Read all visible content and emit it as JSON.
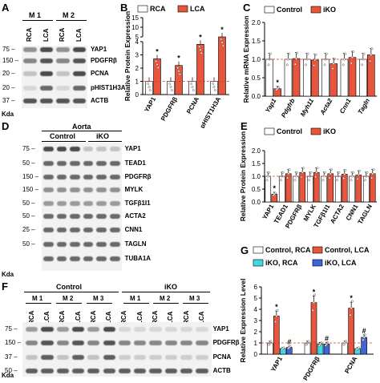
{
  "panels": {
    "A": {
      "label": "A",
      "mice": [
        "M 1",
        "M 2"
      ],
      "lanes": [
        "RCA",
        "LCA",
        "RCA",
        "LCA"
      ],
      "markers": [
        "75",
        "150",
        "20",
        "20",
        "37"
      ],
      "unit": "Kda",
      "proteins": [
        "YAP1",
        "PDGFRβ",
        "PCNA",
        "pHIST1H3A",
        "ACTB"
      ]
    },
    "B": {
      "label": "B",
      "legend": [
        "RCA",
        "LCA"
      ]
    },
    "C": {
      "label": "C",
      "legend": [
        "Control",
        "iKO"
      ]
    },
    "D": {
      "label": "D",
      "tissue": "Aorta",
      "groups": [
        "Control",
        "iKO"
      ],
      "markers": [
        "75",
        "50",
        "150",
        "150",
        "50",
        "50",
        "25",
        "50"
      ],
      "unit": "Kda",
      "proteins": [
        "YAP1",
        "TEAD1",
        "PDGFRβ",
        "MYLK",
        "TGFβ1I1",
        "ACTA2",
        "CNN1",
        "TAGLN",
        "TUBA1A"
      ]
    },
    "E": {
      "label": "E",
      "legend": [
        "Control",
        "iKO"
      ]
    },
    "F": {
      "label": "F",
      "groups": [
        "Control",
        "iKO"
      ],
      "mice": [
        "M 1",
        "M 2",
        "M 3",
        "M 1",
        "M 2",
        "M 3"
      ],
      "lanes": [
        "RCA",
        "LCA",
        "RCA",
        "LCA",
        "RCA",
        "LCA",
        "RCA",
        "LCA",
        "RCA",
        "LCA",
        "RCA",
        "LCA"
      ],
      "markers": [
        "75",
        "150",
        "37",
        "50"
      ],
      "unit": "Kda",
      "proteins": [
        "YAP1",
        "PDGFRβ",
        "PCNA",
        "ACTB"
      ]
    },
    "G": {
      "label": "G",
      "legend": [
        "Control, RCA",
        "Control, LCA",
        "iKO, RCA",
        "iKO, LCA"
      ]
    }
  },
  "colors": {
    "red": "#e8553d",
    "white": "#ffffff",
    "cyan": "#3fd9e6",
    "blue": "#3f63d8",
    "dashed": "#d43a2a"
  },
  "chart_data": [
    {
      "type": "bar",
      "panel": "B",
      "ylabel": "Relative Protein Expression",
      "categories": [
        "YAP1",
        "PDGFRβ",
        "PCNA",
        "pHIST1H3A"
      ],
      "series": [
        {
          "name": "RCA",
          "values": [
            1,
            1,
            1,
            1
          ]
        },
        {
          "name": "LCA",
          "values": [
            2.7,
            2.2,
            3.8,
            4.7
          ]
        }
      ],
      "significance": [
        "*",
        "*",
        "*",
        "*"
      ],
      "y_axis_broken": true,
      "yticks_lower": [
        "0",
        "1",
        "2",
        "3",
        "4"
      ],
      "yticks_upper": [
        "5",
        "10",
        "15"
      ],
      "ylim": [
        0,
        15
      ]
    },
    {
      "type": "bar",
      "panel": "C",
      "ylabel": "Relative mRNA Expression",
      "categories": [
        "Yap1",
        "Pdgfrb",
        "Myh11",
        "Acta2",
        "Cnn1",
        "Tagln"
      ],
      "series": [
        {
          "name": "Control",
          "values": [
            1.0,
            1.0,
            1.0,
            1.0,
            1.0,
            1.0
          ]
        },
        {
          "name": "iKO",
          "values": [
            0.2,
            1.02,
            0.98,
            0.88,
            1.05,
            1.12
          ]
        }
      ],
      "significance": [
        "*",
        "",
        "",
        "",
        "",
        ""
      ],
      "yticks": [
        "0.0",
        "0.5",
        "1.0",
        "1.5",
        "2.0"
      ],
      "ylim": [
        0,
        2.0
      ]
    },
    {
      "type": "bar",
      "panel": "E",
      "ylabel": "Relative Protein Expression",
      "categories": [
        "YAP1",
        "TEAD1",
        "PDGFRβ",
        "MYLK",
        "TGFβ1I1",
        "ACTA2",
        "CNN1",
        "TAGLN"
      ],
      "series": [
        {
          "name": "Control",
          "values": [
            1.0,
            1.0,
            1.0,
            1.0,
            1.0,
            1.0,
            1.0,
            1.0
          ]
        },
        {
          "name": "iKO",
          "values": [
            0.3,
            1.1,
            1.15,
            1.15,
            1.1,
            1.08,
            1.05,
            1.1
          ]
        }
      ],
      "significance": [
        "*",
        "",
        "",
        "",
        "",
        "",
        "",
        ""
      ],
      "yticks": [
        "0.0",
        "0.5",
        "1.0",
        "1.5",
        "2.0"
      ],
      "ylim": [
        0,
        2.0
      ]
    },
    {
      "type": "bar",
      "panel": "G",
      "ylabel": "Relative Expression Level",
      "categories": [
        "YAP1",
        "PDGFRβ",
        "PCNA"
      ],
      "series": [
        {
          "name": "Control, RCA",
          "values": [
            1.0,
            1.0,
            1.0
          ]
        },
        {
          "name": "Control, LCA",
          "values": [
            3.4,
            4.6,
            4.1
          ]
        },
        {
          "name": "iKO, RCA",
          "values": [
            0.5,
            0.9,
            0.5
          ]
        },
        {
          "name": "iKO, LCA",
          "values": [
            0.6,
            0.9,
            1.5
          ]
        }
      ],
      "significance": [
        [
          "",
          "*",
          "",
          "#"
        ],
        [
          "",
          "*",
          "",
          "#"
        ],
        [
          "",
          "*",
          "",
          "#"
        ]
      ],
      "yticks": [
        "0",
        "1",
        "2",
        "3",
        "4",
        "5",
        "6"
      ],
      "ylim": [
        0,
        6
      ]
    }
  ]
}
